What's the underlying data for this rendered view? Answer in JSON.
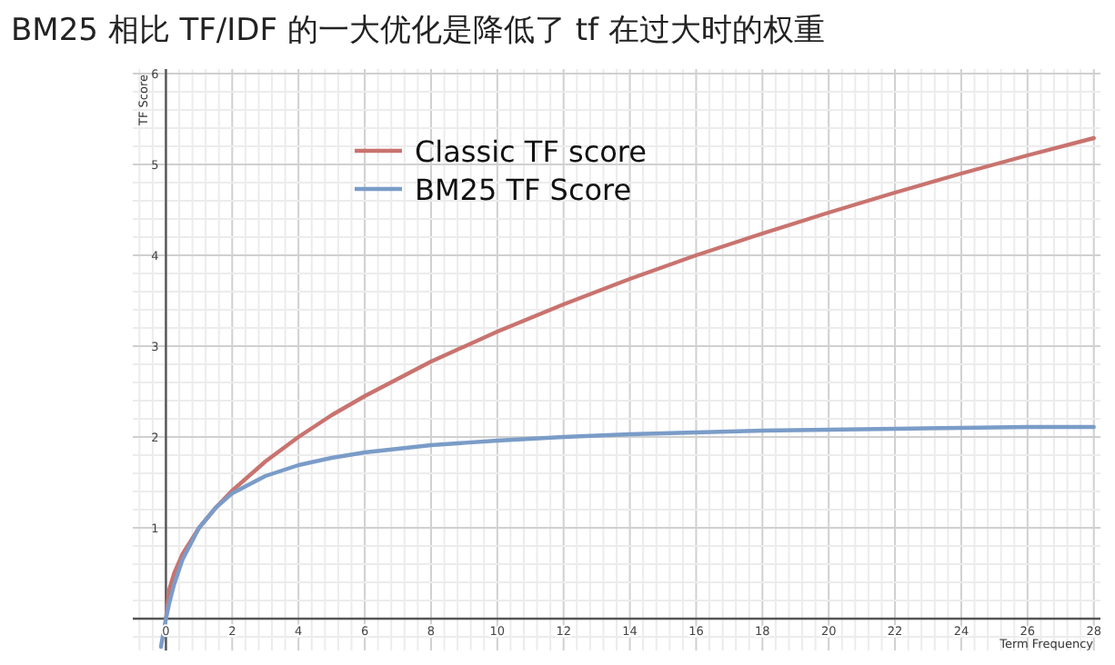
{
  "chart_data": {
    "type": "line",
    "title": "BM25 相比 TF/IDF 的一大优化是降低了 tf 在过大时的权重",
    "xlabel": "Term Frequency",
    "ylabel": "TF Score",
    "xlim": [
      -1,
      28.2
    ],
    "ylim": [
      -0.35,
      6.05
    ],
    "xticks": [
      0,
      2,
      4,
      6,
      8,
      10,
      12,
      14,
      16,
      18,
      20,
      22,
      24,
      26,
      28
    ],
    "yticks": [
      1,
      2,
      3,
      4,
      5,
      6
    ],
    "grid": true,
    "legend": "top",
    "marker": "none",
    "line_style": "solid",
    "series": [
      {
        "name": "Classic TF score",
        "color": "#c9736f",
        "x": [
          0,
          0.1,
          0.25,
          0.5,
          1,
          1.5,
          2,
          3,
          4,
          5,
          6,
          8,
          10,
          12,
          14,
          16,
          18,
          20,
          22,
          24,
          26,
          28
        ],
        "values": [
          0,
          0.32,
          0.5,
          0.71,
          1,
          1.22,
          1.41,
          1.73,
          2,
          2.24,
          2.45,
          2.83,
          3.16,
          3.46,
          3.74,
          4,
          4.24,
          4.47,
          4.69,
          4.9,
          5.1,
          5.29
        ]
      },
      {
        "name": "BM25 TF Score",
        "color": "#7a9cc8",
        "x": [
          -0.15,
          0,
          0.1,
          0.25,
          0.5,
          1,
          1.5,
          2,
          3,
          4,
          5,
          6,
          8,
          10,
          12,
          14,
          16,
          18,
          20,
          22,
          24,
          26,
          28
        ],
        "values": [
          -0.31,
          0,
          0.17,
          0.38,
          0.65,
          1,
          1.22,
          1.38,
          1.57,
          1.69,
          1.77,
          1.83,
          1.91,
          1.96,
          2,
          2.03,
          2.05,
          2.07,
          2.08,
          2.09,
          2.1,
          2.11,
          2.11
        ]
      }
    ]
  }
}
